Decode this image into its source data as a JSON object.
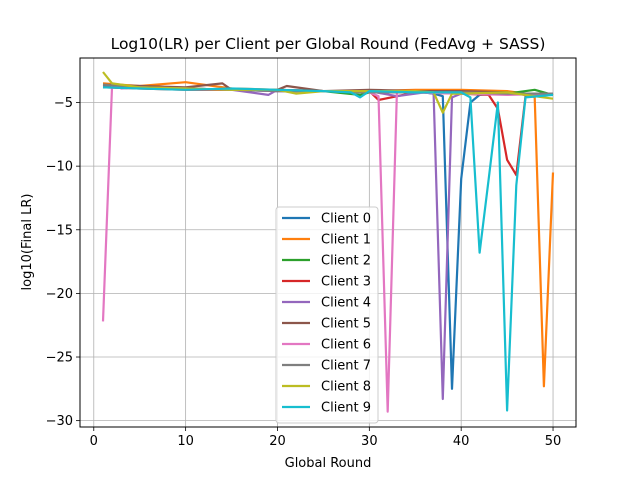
{
  "chart_data": {
    "type": "line",
    "title": "Log10(LR) per Client per Global Round (FedAvg + SASS)",
    "xlabel": "Global Round",
    "ylabel": "log10(Final LR)",
    "xlim": [
      -1.5,
      52.5
    ],
    "ylim": [
      -30.5,
      -1.5
    ],
    "xticks": [
      0,
      10,
      20,
      30,
      40,
      50
    ],
    "yticks": [
      -30,
      -25,
      -20,
      -15,
      -10,
      -5
    ],
    "grid": true,
    "legend_position": "lower center",
    "series": [
      {
        "name": "Client 0",
        "color": "#1f77b4",
        "x": [
          1,
          5,
          10,
          15,
          20,
          25,
          30,
          34,
          36,
          37,
          38,
          39,
          40,
          41,
          42,
          44,
          46,
          48,
          50
        ],
        "y": [
          -3.7,
          -3.8,
          -3.9,
          -4.0,
          -4.1,
          -4.1,
          -4.2,
          -4.2,
          -4.2,
          -4.3,
          -4.5,
          -27.5,
          -11.0,
          -5.0,
          -4.4,
          -4.3,
          -4.3,
          -4.3,
          -4.3
        ]
      },
      {
        "name": "Client 1",
        "color": "#ff7f0e",
        "x": [
          1,
          5,
          10,
          15,
          20,
          25,
          30,
          35,
          40,
          45,
          46,
          47,
          48,
          49,
          50
        ],
        "y": [
          -3.5,
          -3.7,
          -3.4,
          -3.9,
          -4.0,
          -4.1,
          -4.1,
          -4.0,
          -4.0,
          -4.1,
          -4.2,
          -4.3,
          -4.6,
          -27.3,
          -10.5
        ]
      },
      {
        "name": "Client 2",
        "color": "#2ca02c",
        "x": [
          1,
          5,
          10,
          15,
          20,
          25,
          29,
          30,
          35,
          40,
          45,
          48,
          50
        ],
        "y": [
          -3.8,
          -3.8,
          -3.9,
          -4.0,
          -4.0,
          -4.1,
          -4.4,
          -4.2,
          -4.1,
          -4.2,
          -4.3,
          -4.0,
          -4.4
        ]
      },
      {
        "name": "Client 3",
        "color": "#d62728",
        "x": [
          1,
          5,
          10,
          15,
          20,
          25,
          30,
          31,
          35,
          40,
          43,
          44,
          45,
          46,
          47,
          48,
          50
        ],
        "y": [
          -3.8,
          -3.9,
          -4.0,
          -4.0,
          -4.0,
          -4.1,
          -4.1,
          -4.8,
          -4.2,
          -4.3,
          -4.4,
          -5.5,
          -9.5,
          -10.7,
          -4.5,
          -4.3,
          -4.3
        ]
      },
      {
        "name": "Client 4",
        "color": "#9467bd",
        "x": [
          1,
          5,
          10,
          15,
          19,
          20,
          25,
          30,
          33,
          36,
          37,
          38,
          39,
          40,
          41,
          45,
          50
        ],
        "y": [
          -3.8,
          -3.8,
          -3.9,
          -4.0,
          -4.4,
          -4.0,
          -4.1,
          -4.1,
          -4.5,
          -4.2,
          -4.3,
          -28.3,
          -4.6,
          -4.3,
          -4.2,
          -4.3,
          -4.4
        ]
      },
      {
        "name": "Client 5",
        "color": "#8c564b",
        "x": [
          1,
          5,
          10,
          14,
          15,
          20,
          21,
          25,
          30,
          35,
          40,
          45,
          48,
          50
        ],
        "y": [
          -3.6,
          -3.7,
          -3.8,
          -3.5,
          -4.0,
          -4.0,
          -3.7,
          -4.1,
          -4.0,
          -4.1,
          -4.1,
          -4.2,
          -4.5,
          -4.3
        ]
      },
      {
        "name": "Client 6",
        "color": "#e377c2",
        "x": [
          1,
          2,
          3,
          5,
          10,
          15,
          20,
          25,
          30,
          31,
          32,
          33,
          34,
          35,
          40,
          45,
          50
        ],
        "y": [
          -22.2,
          -3.6,
          -3.9,
          -3.8,
          -3.9,
          -4.0,
          -4.1,
          -4.1,
          -4.2,
          -4.5,
          -29.3,
          -4.2,
          -4.2,
          -4.2,
          -4.3,
          -4.4,
          -4.3
        ]
      },
      {
        "name": "Client 7",
        "color": "#7f7f7f",
        "x": [
          1,
          5,
          10,
          15,
          20,
          25,
          30,
          35,
          40,
          45,
          50
        ],
        "y": [
          -3.6,
          -3.8,
          -3.9,
          -4.0,
          -4.1,
          -4.1,
          -4.2,
          -4.2,
          -4.2,
          -4.3,
          -4.3
        ]
      },
      {
        "name": "Client 8",
        "color": "#bcbd22",
        "x": [
          1,
          2,
          5,
          10,
          15,
          20,
          22,
          25,
          30,
          35,
          37,
          38,
          39,
          40,
          45,
          50
        ],
        "y": [
          -2.6,
          -3.5,
          -3.8,
          -3.9,
          -4.0,
          -4.0,
          -4.3,
          -4.1,
          -4.1,
          -4.1,
          -4.2,
          -5.8,
          -4.3,
          -4.3,
          -4.2,
          -4.7
        ]
      },
      {
        "name": "Client 9",
        "color": "#17becf",
        "x": [
          1,
          5,
          10,
          15,
          20,
          25,
          28,
          29,
          30,
          35,
          40,
          41,
          42,
          43,
          44,
          45,
          46,
          47,
          50
        ],
        "y": [
          -3.8,
          -3.9,
          -4.0,
          -3.9,
          -4.0,
          -4.1,
          -4.2,
          -4.6,
          -4.1,
          -4.2,
          -4.2,
          -4.6,
          -16.8,
          -11.0,
          -5.0,
          -29.2,
          -11.5,
          -4.6,
          -4.4
        ]
      }
    ]
  }
}
